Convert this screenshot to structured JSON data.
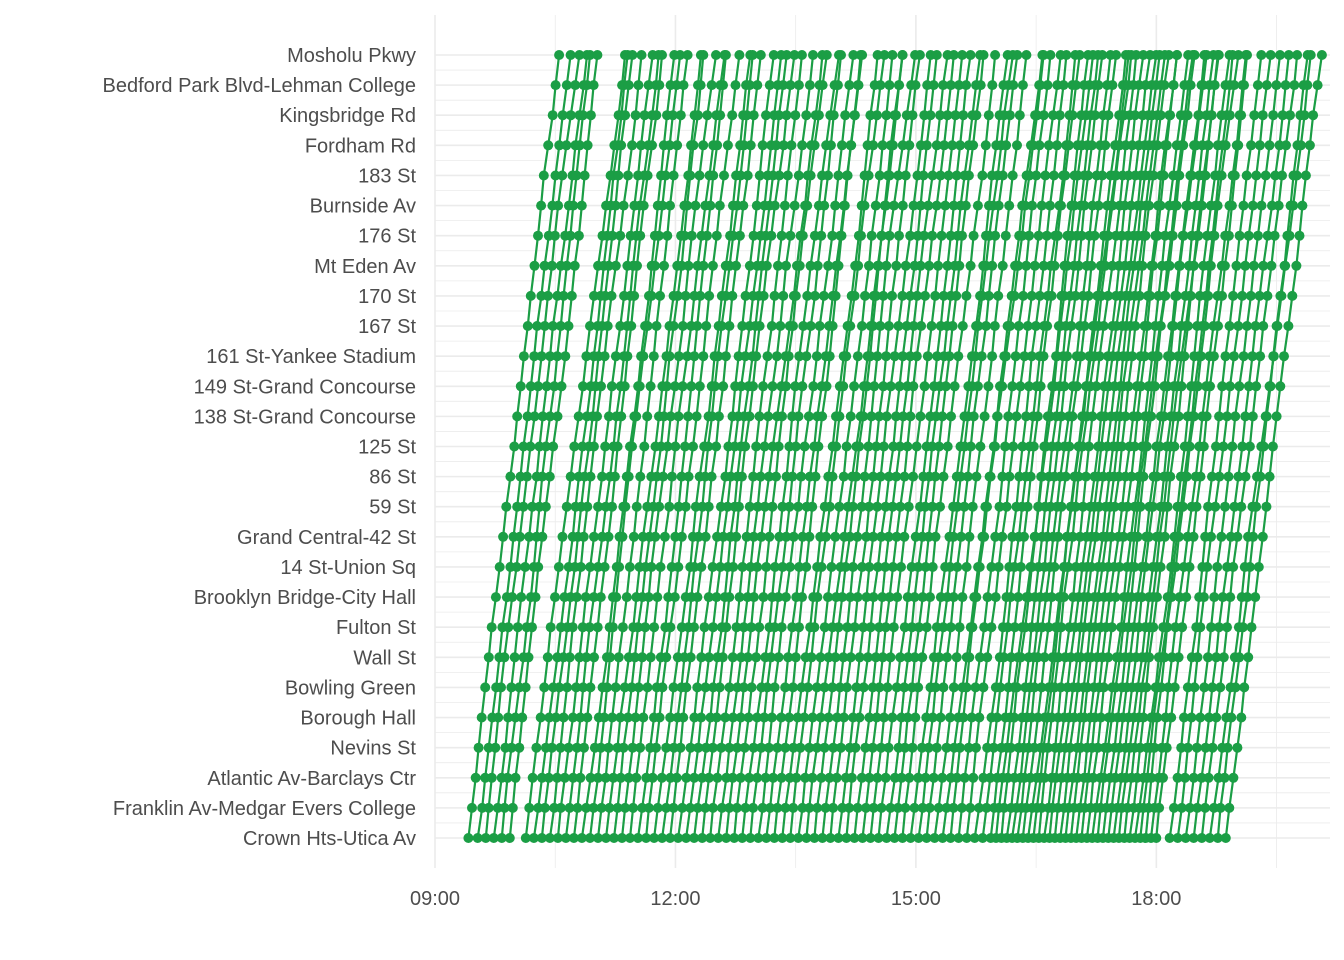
{
  "chart_data": {
    "type": "line",
    "title": "",
    "xlabel": "",
    "ylabel": "",
    "series_color": "#1b9e45",
    "grid": true,
    "legend": "none",
    "stations": [
      "Crown Hts-Utica Av",
      "Franklin Av-Medgar Evers College",
      "Atlantic Av-Barclays Ctr",
      "Nevins St",
      "Borough Hall",
      "Bowling Green",
      "Wall St",
      "Fulton St",
      "Brooklyn Bridge-City Hall",
      "14 St-Union Sq",
      "Grand Central-42 St",
      "59 St",
      "86 St",
      "125 St",
      "138 St-Grand Concourse",
      "149 St-Grand Concourse",
      "161 St-Yankee Stadium",
      "167 St",
      "170 St",
      "Mt Eden Av",
      "176 St",
      "Burnside Av",
      "183 St",
      "Fordham Rd",
      "Kingsbridge Rd",
      "Bedford Park Blvd-Lehman College",
      "Mosholu Pkwy"
    ],
    "x_ticks": [
      "09:00",
      "12:00",
      "15:00",
      "18:00"
    ],
    "x_range": [
      "09:00",
      "20:10"
    ],
    "trip_start_times": [
      "09:25",
      "09:32",
      "09:38",
      "09:44",
      "09:50",
      "09:56",
      "10:08",
      "10:14",
      "10:20",
      "10:26",
      "10:32",
      "10:38",
      "10:44",
      "10:50",
      "10:56",
      "11:02",
      "11:08",
      "11:14",
      "11:20",
      "11:26",
      "11:32",
      "11:38",
      "11:44",
      "11:50",
      "11:56",
      "12:02",
      "12:08",
      "12:14",
      "12:20",
      "12:26",
      "12:32",
      "12:38",
      "12:44",
      "12:50",
      "12:56",
      "13:02",
      "13:08",
      "13:14",
      "13:20",
      "13:26",
      "13:32",
      "13:38",
      "13:44",
      "13:50",
      "13:56",
      "14:02",
      "14:08",
      "14:14",
      "14:20",
      "14:26",
      "14:32",
      "14:38",
      "14:44",
      "14:50",
      "14:56",
      "15:02",
      "15:08",
      "15:14",
      "15:20",
      "15:26",
      "15:32",
      "15:38",
      "15:44",
      "15:50",
      "15:56",
      "16:00",
      "16:04",
      "16:08",
      "16:12",
      "16:16",
      "16:20",
      "16:24",
      "16:28",
      "16:32",
      "16:36",
      "16:40",
      "16:44",
      "16:48",
      "16:52",
      "16:56",
      "17:00",
      "17:04",
      "17:08",
      "17:12",
      "17:16",
      "17:20",
      "17:24",
      "17:28",
      "17:32",
      "17:36",
      "17:40",
      "17:44",
      "17:48",
      "17:52",
      "17:56",
      "18:00",
      "18:10",
      "18:16",
      "18:22",
      "18:28",
      "18:34",
      "18:40",
      "18:46",
      "18:52"
    ],
    "trip_duration_minutes": 70
  }
}
